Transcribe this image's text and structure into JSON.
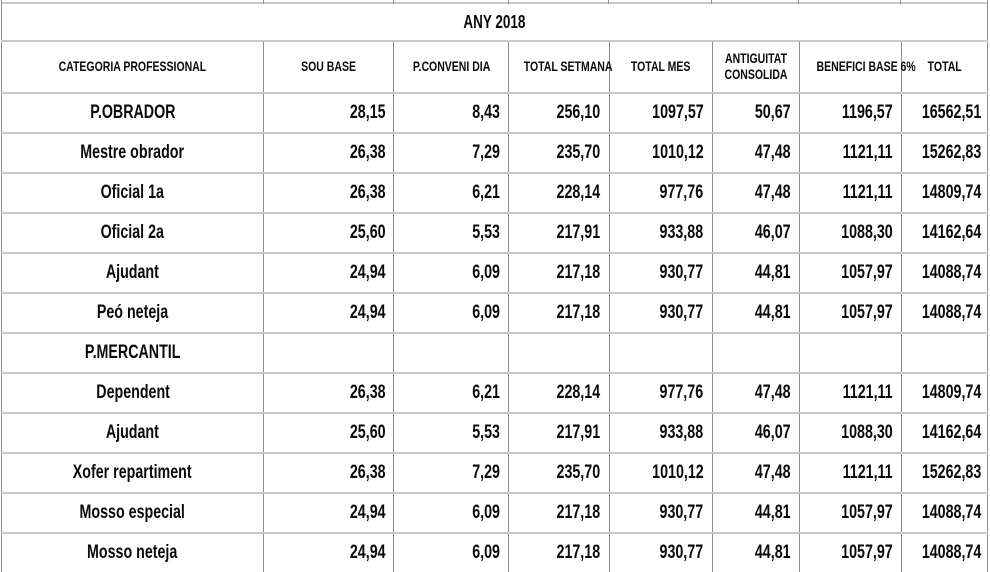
{
  "table": {
    "title": "ANY 2018",
    "columns": [
      "CATEGORIA PROFESSIONAL",
      "SOU BASE",
      "P.CONVENI DIA",
      "TOTAL SETMANA",
      "TOTAL MES",
      "ANTIGUITAT\nCONSOLIDA",
      "BENEFICI BASE 6%",
      "TOTAL"
    ],
    "rows": [
      {
        "category": "P.OBRADOR",
        "values": [
          "28,15",
          "8,43",
          "256,10",
          "1097,57",
          "50,67",
          "1196,57",
          "16562,51"
        ]
      },
      {
        "category": "Mestre obrador",
        "values": [
          "26,38",
          "7,29",
          "235,70",
          "1010,12",
          "47,48",
          "1121,11",
          "15262,83"
        ]
      },
      {
        "category": "Oficial 1a",
        "values": [
          "26,38",
          "6,21",
          "228,14",
          "977,76",
          "47,48",
          "1121,11",
          "14809,74"
        ]
      },
      {
        "category": "Oficial 2a",
        "values": [
          "25,60",
          "5,53",
          "217,91",
          "933,88",
          "46,07",
          "1088,30",
          "14162,64"
        ]
      },
      {
        "category": "Ajudant",
        "values": [
          "24,94",
          "6,09",
          "217,18",
          "930,77",
          "44,81",
          "1057,97",
          "14088,74"
        ]
      },
      {
        "category": "Peó neteja",
        "values": [
          "24,94",
          "6,09",
          "217,18",
          "930,77",
          "44,81",
          "1057,97",
          "14088,74"
        ]
      },
      {
        "category": "P.MERCANTIL",
        "values": [
          "",
          "",
          "",
          "",
          "",
          "",
          ""
        ]
      },
      {
        "category": "Dependent",
        "values": [
          "26,38",
          "6,21",
          "228,14",
          "977,76",
          "47,48",
          "1121,11",
          "14809,74"
        ]
      },
      {
        "category": "Ajudant",
        "values": [
          "25,60",
          "5,53",
          "217,91",
          "933,88",
          "46,07",
          "1088,30",
          "14162,64"
        ]
      },
      {
        "category": "Xofer repartiment",
        "values": [
          "26,38",
          "7,29",
          "235,70",
          "1010,12",
          "47,48",
          "1121,11",
          "15262,83"
        ]
      },
      {
        "category": "Mosso especial",
        "values": [
          "24,94",
          "6,09",
          "217,18",
          "930,77",
          "44,81",
          "1057,97",
          "14088,74"
        ]
      },
      {
        "category": "Mosso neteja",
        "values": [
          "24,94",
          "6,09",
          "217,18",
          "930,77",
          "44,81",
          "1057,97",
          "14088,74"
        ]
      }
    ]
  },
  "colors": {
    "background": "#ffffff",
    "text": "#0a0a0a",
    "border_vertical": "#8f8f8f",
    "border_horizontal": "#c9c9c9"
  }
}
